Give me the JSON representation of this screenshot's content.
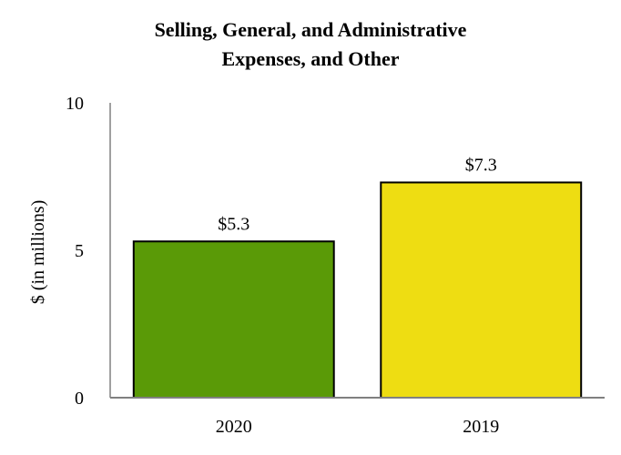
{
  "chart_data": {
    "type": "bar",
    "title_lines": [
      "Selling, General, and Administrative",
      "Expenses, and Other"
    ],
    "xlabel": "",
    "ylabel": "$ (in millions)",
    "categories": [
      "2020",
      "2019"
    ],
    "values": [
      5.3,
      7.3
    ],
    "data_labels": [
      "$5.3",
      "$7.3"
    ],
    "colors": [
      "#5a9a07",
      "#eedd12"
    ],
    "ylim": [
      0,
      10
    ],
    "yticks": [
      0,
      5,
      10
    ],
    "ytick_labels": [
      "0",
      "5",
      "10"
    ],
    "grid": false,
    "legend": "none"
  }
}
